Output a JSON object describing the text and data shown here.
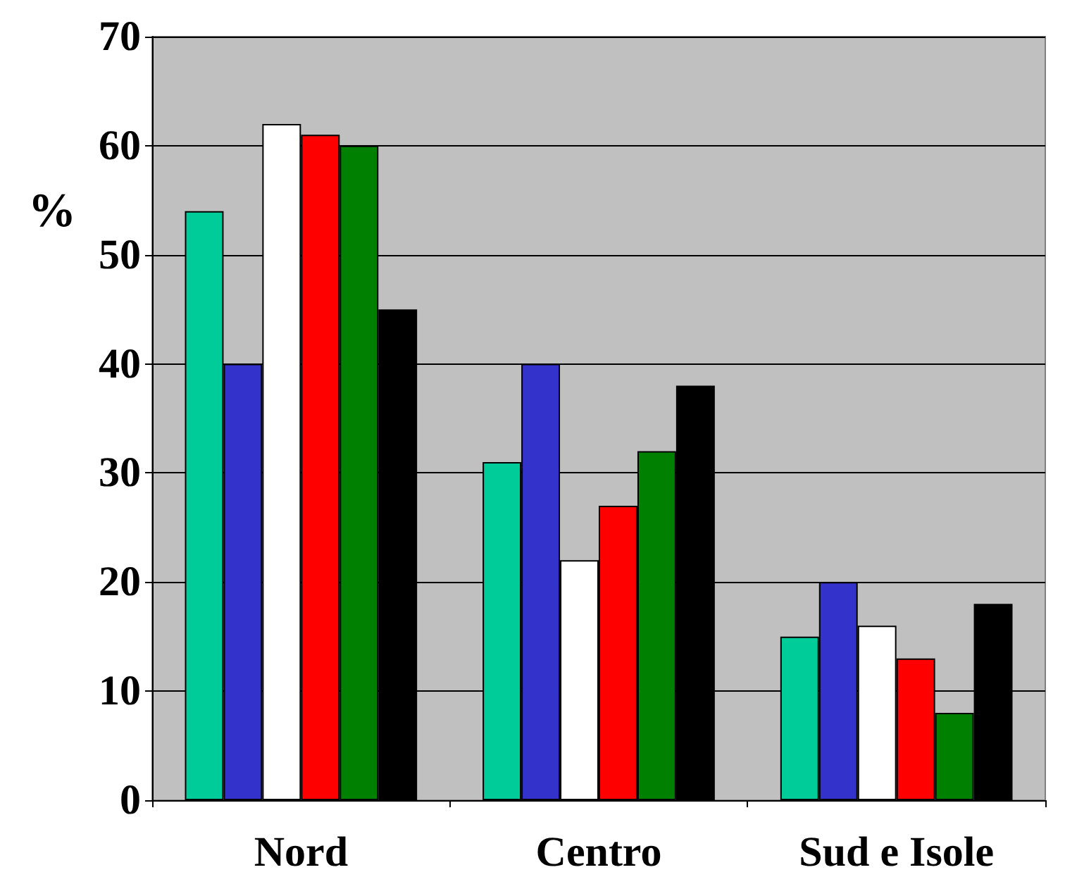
{
  "chart_data": {
    "type": "bar",
    "ylabel": "%",
    "categories": [
      "Nord",
      "Centro",
      "Sud e Isole"
    ],
    "series": [
      {
        "color": "#00cc99",
        "values": [
          54,
          31,
          15
        ]
      },
      {
        "color": "#3333cc",
        "values": [
          40,
          40,
          20
        ]
      },
      {
        "color": "#ffffff",
        "values": [
          62,
          22,
          16
        ]
      },
      {
        "color": "#ff0000",
        "values": [
          61,
          27,
          13
        ]
      },
      {
        "color": "#008000",
        "values": [
          60,
          32,
          8
        ]
      },
      {
        "color": "#000000",
        "values": [
          45,
          38,
          18
        ]
      }
    ],
    "ylim": [
      0,
      70
    ],
    "yticks": [
      0,
      10,
      20,
      30,
      40,
      50,
      60,
      70
    ],
    "grid": "y"
  }
}
